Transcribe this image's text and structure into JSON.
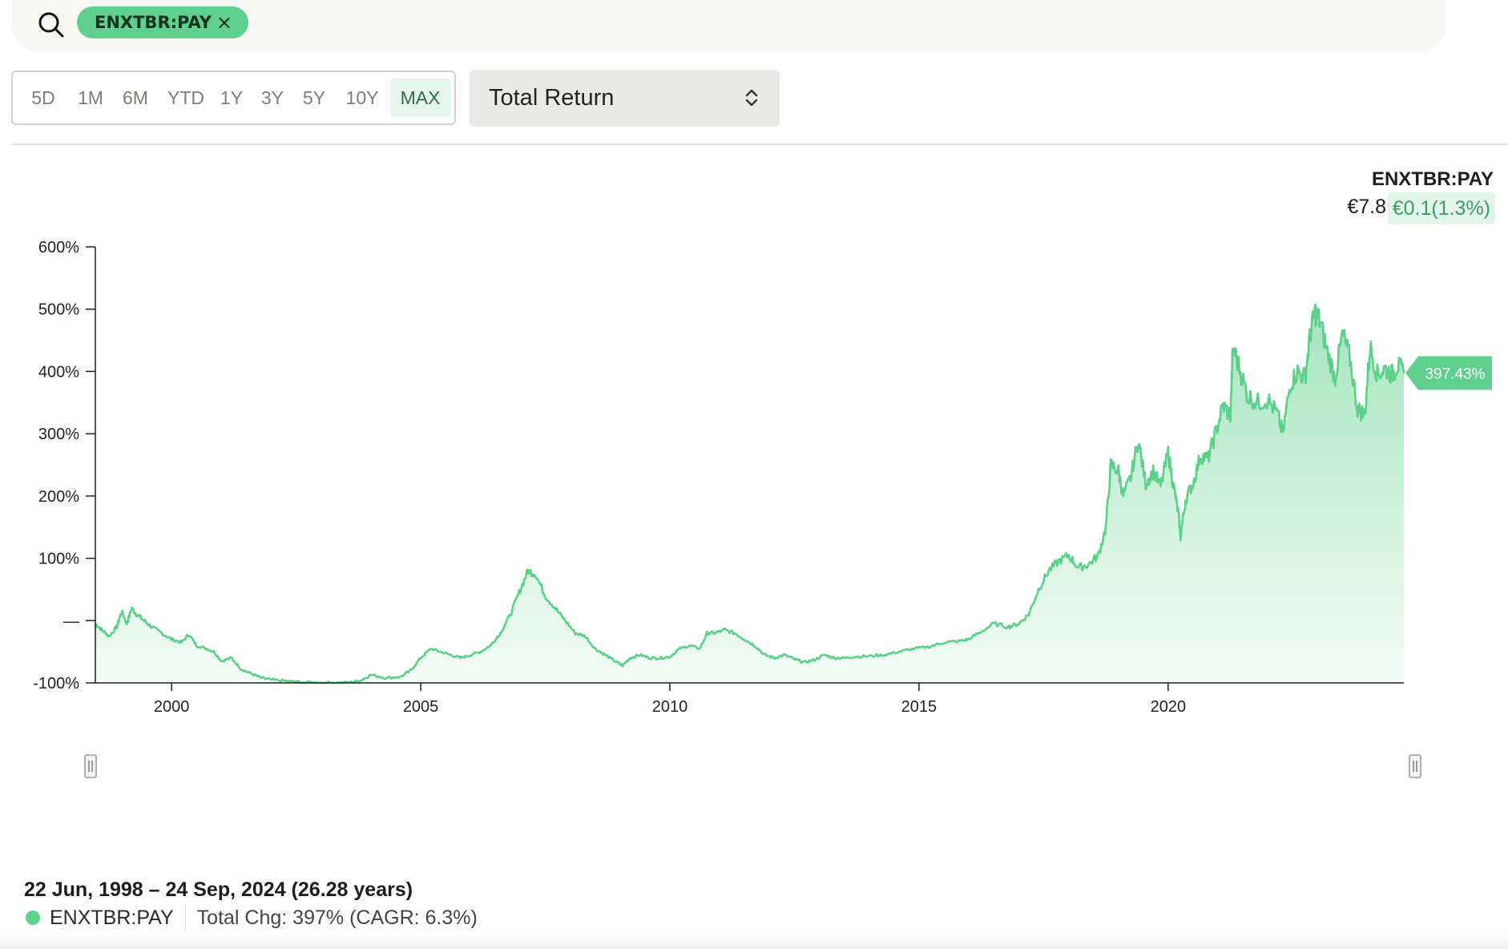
{
  "search": {
    "chip_label": "ENXTBR:PAY",
    "chip_close": "×"
  },
  "ranges": [
    {
      "label": "5D",
      "active": false
    },
    {
      "label": "1M",
      "active": false
    },
    {
      "label": "6M",
      "active": false
    },
    {
      "label": "YTD",
      "active": false
    },
    {
      "label": "1Y",
      "active": false
    },
    {
      "label": "3Y",
      "active": false
    },
    {
      "label": "5Y",
      "active": false
    },
    {
      "label": "10Y",
      "active": false
    },
    {
      "label": "MAX",
      "active": true
    }
  ],
  "select": {
    "value": "Total Return"
  },
  "legend": {
    "ticker": "ENXTBR:PAY",
    "price": "€7.8",
    "change": "€0.1(1.3%)"
  },
  "footer": {
    "range": "22 Jun, 1998 – 24 Sep, 2024 (26.28 years)",
    "ticker": "ENXTBR:PAY",
    "total_change": "Total Chg: 397% (CAGR: 6.3%)"
  },
  "colors": {
    "accent": "#5fd08d",
    "line": "#5ccf88",
    "area_top": "#9ee3b9",
    "area_bottom": "#f2fbf6"
  },
  "chart_data": {
    "type": "area",
    "ylabel": "",
    "xlabel": "",
    "ylim": [
      -100,
      600
    ],
    "xlim": [
      1998.47,
      2024.73
    ],
    "y_ticks": [
      {
        "value": 600,
        "label": "600%"
      },
      {
        "value": 500,
        "label": "500%"
      },
      {
        "value": 400,
        "label": "400%"
      },
      {
        "value": 300,
        "label": "300%"
      },
      {
        "value": 200,
        "label": "200%"
      },
      {
        "value": 100,
        "label": "100%"
      },
      {
        "value": 0,
        "label": "—"
      },
      {
        "value": -100,
        "label": "-100%"
      }
    ],
    "x_ticks": [
      {
        "value": 2000,
        "label": "2000"
      },
      {
        "value": 2005,
        "label": "2005"
      },
      {
        "value": 2010,
        "label": "2010"
      },
      {
        "value": 2015,
        "label": "2015"
      },
      {
        "value": 2020,
        "label": "2020"
      }
    ],
    "last_value_label": "397.43%",
    "last_value": 397.43,
    "series": [
      {
        "name": "ENXTBR:PAY",
        "points": [
          [
            1998.47,
            -5
          ],
          [
            1998.6,
            -15
          ],
          [
            1998.75,
            -25
          ],
          [
            1998.9,
            -10
          ],
          [
            1999.0,
            15
          ],
          [
            1999.1,
            -5
          ],
          [
            1999.2,
            20
          ],
          [
            1999.3,
            10
          ],
          [
            1999.45,
            0
          ],
          [
            1999.6,
            -10
          ],
          [
            1999.8,
            -20
          ],
          [
            2000.0,
            -30
          ],
          [
            2000.2,
            -35
          ],
          [
            2000.35,
            -22
          ],
          [
            2000.5,
            -40
          ],
          [
            2000.7,
            -45
          ],
          [
            2000.85,
            -50
          ],
          [
            2001.0,
            -65
          ],
          [
            2001.2,
            -60
          ],
          [
            2001.4,
            -78
          ],
          [
            2001.6,
            -85
          ],
          [
            2001.8,
            -92
          ],
          [
            2002.0,
            -95
          ],
          [
            2002.3,
            -97
          ],
          [
            2002.6,
            -99
          ],
          [
            2003.0,
            -100
          ],
          [
            2003.3,
            -100
          ],
          [
            2003.6,
            -99
          ],
          [
            2003.8,
            -96
          ],
          [
            2004.0,
            -87
          ],
          [
            2004.3,
            -92
          ],
          [
            2004.6,
            -90
          ],
          [
            2004.8,
            -80
          ],
          [
            2005.0,
            -60
          ],
          [
            2005.2,
            -45
          ],
          [
            2005.4,
            -50
          ],
          [
            2005.6,
            -55
          ],
          [
            2005.8,
            -60
          ],
          [
            2006.0,
            -55
          ],
          [
            2006.2,
            -50
          ],
          [
            2006.4,
            -40
          ],
          [
            2006.6,
            -20
          ],
          [
            2006.8,
            10
          ],
          [
            2007.0,
            50
          ],
          [
            2007.15,
            80
          ],
          [
            2007.3,
            75
          ],
          [
            2007.5,
            40
          ],
          [
            2007.7,
            20
          ],
          [
            2007.9,
            0
          ],
          [
            2008.1,
            -20
          ],
          [
            2008.3,
            -25
          ],
          [
            2008.5,
            -45
          ],
          [
            2008.7,
            -55
          ],
          [
            2008.9,
            -65
          ],
          [
            2009.05,
            -72
          ],
          [
            2009.2,
            -60
          ],
          [
            2009.4,
            -55
          ],
          [
            2009.6,
            -60
          ],
          [
            2009.8,
            -60
          ],
          [
            2010.0,
            -58
          ],
          [
            2010.2,
            -45
          ],
          [
            2010.4,
            -40
          ],
          [
            2010.6,
            -45
          ],
          [
            2010.75,
            -20
          ],
          [
            2010.9,
            -20
          ],
          [
            2011.1,
            -15
          ],
          [
            2011.3,
            -20
          ],
          [
            2011.5,
            -30
          ],
          [
            2011.7,
            -40
          ],
          [
            2011.9,
            -55
          ],
          [
            2012.1,
            -60
          ],
          [
            2012.3,
            -55
          ],
          [
            2012.5,
            -62
          ],
          [
            2012.7,
            -67
          ],
          [
            2012.9,
            -63
          ],
          [
            2013.1,
            -55
          ],
          [
            2013.3,
            -60
          ],
          [
            2013.5,
            -60
          ],
          [
            2013.7,
            -58
          ],
          [
            2014.0,
            -57
          ],
          [
            2014.3,
            -55
          ],
          [
            2014.6,
            -50
          ],
          [
            2014.9,
            -45
          ],
          [
            2015.2,
            -42
          ],
          [
            2015.5,
            -35
          ],
          [
            2015.8,
            -33
          ],
          [
            2016.0,
            -30
          ],
          [
            2016.2,
            -20
          ],
          [
            2016.5,
            -5
          ],
          [
            2016.8,
            -10
          ],
          [
            2017.0,
            -5
          ],
          [
            2017.2,
            10
          ],
          [
            2017.4,
            50
          ],
          [
            2017.6,
            80
          ],
          [
            2017.8,
            95
          ],
          [
            2018.0,
            105
          ],
          [
            2018.2,
            85
          ],
          [
            2018.4,
            90
          ],
          [
            2018.6,
            105
          ],
          [
            2018.75,
            150
          ],
          [
            2018.85,
            250
          ],
          [
            2019.0,
            240
          ],
          [
            2019.1,
            200
          ],
          [
            2019.25,
            230
          ],
          [
            2019.4,
            290
          ],
          [
            2019.55,
            220
          ],
          [
            2019.7,
            240
          ],
          [
            2019.85,
            215
          ],
          [
            2020.0,
            270
          ],
          [
            2020.1,
            220
          ],
          [
            2020.2,
            175
          ],
          [
            2020.25,
            135
          ],
          [
            2020.35,
            195
          ],
          [
            2020.5,
            220
          ],
          [
            2020.65,
            265
          ],
          [
            2020.8,
            260
          ],
          [
            2020.95,
            300
          ],
          [
            2021.1,
            345
          ],
          [
            2021.25,
            330
          ],
          [
            2021.3,
            440
          ],
          [
            2021.45,
            400
          ],
          [
            2021.6,
            360
          ],
          [
            2021.8,
            350
          ],
          [
            2022.0,
            355
          ],
          [
            2022.2,
            330
          ],
          [
            2022.3,
            300
          ],
          [
            2022.45,
            380
          ],
          [
            2022.6,
            400
          ],
          [
            2022.75,
            390
          ],
          [
            2022.85,
            460
          ],
          [
            2022.95,
            495
          ],
          [
            2023.05,
            480
          ],
          [
            2023.2,
            430
          ],
          [
            2023.35,
            390
          ],
          [
            2023.5,
            460
          ],
          [
            2023.65,
            420
          ],
          [
            2023.8,
            340
          ],
          [
            2023.95,
            330
          ],
          [
            2024.05,
            440
          ],
          [
            2024.2,
            395
          ],
          [
            2024.35,
            405
          ],
          [
            2024.5,
            395
          ],
          [
            2024.6,
            410
          ],
          [
            2024.73,
            397.43
          ]
        ]
      }
    ]
  }
}
